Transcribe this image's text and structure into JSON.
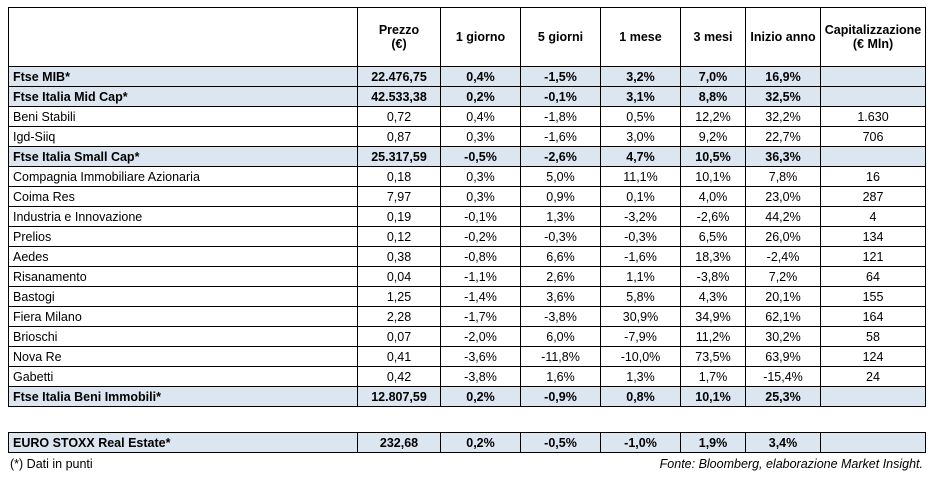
{
  "table": {
    "header": [
      [
        ""
      ],
      [
        "Prezzo",
        "(€)"
      ],
      [
        "1 giorno"
      ],
      [
        "5 giorni"
      ],
      [
        "1 mese"
      ],
      [
        "3 mesi"
      ],
      [
        "Inizio anno"
      ],
      [
        "Capitalizzazione",
        "(€ Mln)"
      ]
    ],
    "rows": [
      {
        "highlight": true,
        "cells": [
          "Ftse MIB*",
          "22.476,75",
          "0,4%",
          "-1,5%",
          "3,2%",
          "7,0%",
          "16,9%",
          ""
        ]
      },
      {
        "highlight": true,
        "cells": [
          "Ftse Italia Mid Cap*",
          "42.533,38",
          "0,2%",
          "-0,1%",
          "3,1%",
          "8,8%",
          "32,5%",
          ""
        ]
      },
      {
        "highlight": false,
        "cells": [
          "Beni Stabili",
          "0,72",
          "0,4%",
          "-1,8%",
          "0,5%",
          "12,2%",
          "32,2%",
          "1.630"
        ]
      },
      {
        "highlight": false,
        "cells": [
          "Igd-Siiq",
          "0,87",
          "0,3%",
          "-1,6%",
          "3,0%",
          "9,2%",
          "22,7%",
          "706"
        ]
      },
      {
        "highlight": true,
        "cells": [
          "Ftse Italia Small Cap*",
          "25.317,59",
          "-0,5%",
          "-2,6%",
          "4,7%",
          "10,5%",
          "36,3%",
          ""
        ]
      },
      {
        "highlight": false,
        "cells": [
          "Compagnia Immobiliare Azionaria",
          "0,18",
          "0,3%",
          "5,0%",
          "11,1%",
          "10,1%",
          "7,8%",
          "16"
        ]
      },
      {
        "highlight": false,
        "cells": [
          "Coima Res",
          "7,97",
          "0,3%",
          "0,9%",
          "0,1%",
          "4,0%",
          "23,0%",
          "287"
        ]
      },
      {
        "highlight": false,
        "cells": [
          "Industria e Innovazione",
          "0,19",
          "-0,1%",
          "1,3%",
          "-3,2%",
          "-2,6%",
          "44,2%",
          "4"
        ]
      },
      {
        "highlight": false,
        "cells": [
          "Prelios",
          "0,12",
          "-0,2%",
          "-0,3%",
          "-0,3%",
          "6,5%",
          "26,0%",
          "134"
        ]
      },
      {
        "highlight": false,
        "cells": [
          "Aedes",
          "0,38",
          "-0,8%",
          "6,6%",
          "-1,6%",
          "18,3%",
          "-2,4%",
          "121"
        ]
      },
      {
        "highlight": false,
        "cells": [
          "Risanamento",
          "0,04",
          "-1,1%",
          "2,6%",
          "1,1%",
          "-3,8%",
          "7,2%",
          "64"
        ]
      },
      {
        "highlight": false,
        "cells": [
          "Bastogi",
          "1,25",
          "-1,4%",
          "3,6%",
          "5,8%",
          "4,3%",
          "20,1%",
          "155"
        ]
      },
      {
        "highlight": false,
        "cells": [
          "Fiera Milano",
          "2,28",
          "-1,7%",
          "-3,8%",
          "30,9%",
          "34,9%",
          "62,1%",
          "164"
        ]
      },
      {
        "highlight": false,
        "cells": [
          "Brioschi",
          "0,07",
          "-2,0%",
          "6,0%",
          "-7,9%",
          "11,2%",
          "30,2%",
          "58"
        ]
      },
      {
        "highlight": false,
        "cells": [
          "Nova Re",
          "0,41",
          "-3,6%",
          "-11,8%",
          "-10,0%",
          "73,5%",
          "63,9%",
          "124"
        ]
      },
      {
        "highlight": false,
        "cells": [
          "Gabetti",
          "0,42",
          "-3,8%",
          "1,6%",
          "1,3%",
          "1,7%",
          "-15,4%",
          "24"
        ]
      },
      {
        "highlight": true,
        "cells": [
          "Ftse Italia Beni Immobili*",
          "12.807,59",
          "0,2%",
          "-0,9%",
          "0,8%",
          "10,1%",
          "25,3%",
          ""
        ]
      }
    ]
  },
  "summary": {
    "rows": [
      {
        "highlight": true,
        "cells": [
          "EURO STOXX Real Estate*",
          "232,68",
          "0,2%",
          "-0,5%",
          "-1,0%",
          "1,9%",
          "3,4%",
          ""
        ]
      }
    ]
  },
  "footer": {
    "note": "(*) Dati in punti",
    "source": "Fonte: Bloomberg, elaborazione Market Insight."
  }
}
